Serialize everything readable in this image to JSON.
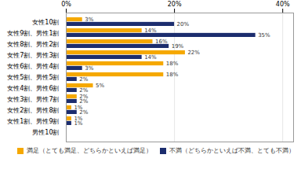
{
  "chart_data": {
    "type": "bar",
    "orientation": "horizontal",
    "categories": [
      "女性10割",
      "女性9割、男性1割",
      "女性8割、男性2割",
      "女性7割、男性3割",
      "女性6割、男性4割",
      "女性5割、男性5割",
      "女性4割、男性6割",
      "女性3割、男性7割",
      "女性2割、男性8割",
      "女性1割、男性9割",
      "男性10割"
    ],
    "series": [
      {
        "name": "満足（とても満足、どちらかといえば満足）",
        "color": "#F5A800",
        "values": [
          3,
          14,
          16,
          22,
          18,
          18,
          5,
          2,
          1,
          1,
          0
        ],
        "value_labels": [
          "3%",
          "14%",
          "16%",
          "22%",
          "18%",
          "18%",
          "5%",
          "2%",
          "1%",
          "1%",
          null
        ]
      },
      {
        "name": "不満（どちらかといえば不満、とても不満）",
        "color": "#1C2D6E",
        "values": [
          20,
          35,
          19,
          14,
          3,
          2,
          2,
          2,
          2,
          1,
          0
        ],
        "value_labels": [
          "20%",
          "35%",
          "19%",
          "14%",
          "3%",
          "2%",
          "2%",
          "2%",
          "2%",
          "1%",
          null
        ]
      }
    ],
    "xlim": [
      0,
      42
    ],
    "xticks": [
      {
        "value": 0,
        "label": "0%"
      },
      {
        "value": 20,
        "label": "20%"
      },
      {
        "value": 40,
        "label": "40%"
      }
    ],
    "grid": true,
    "legend": "lower right",
    "data_labels": true
  }
}
